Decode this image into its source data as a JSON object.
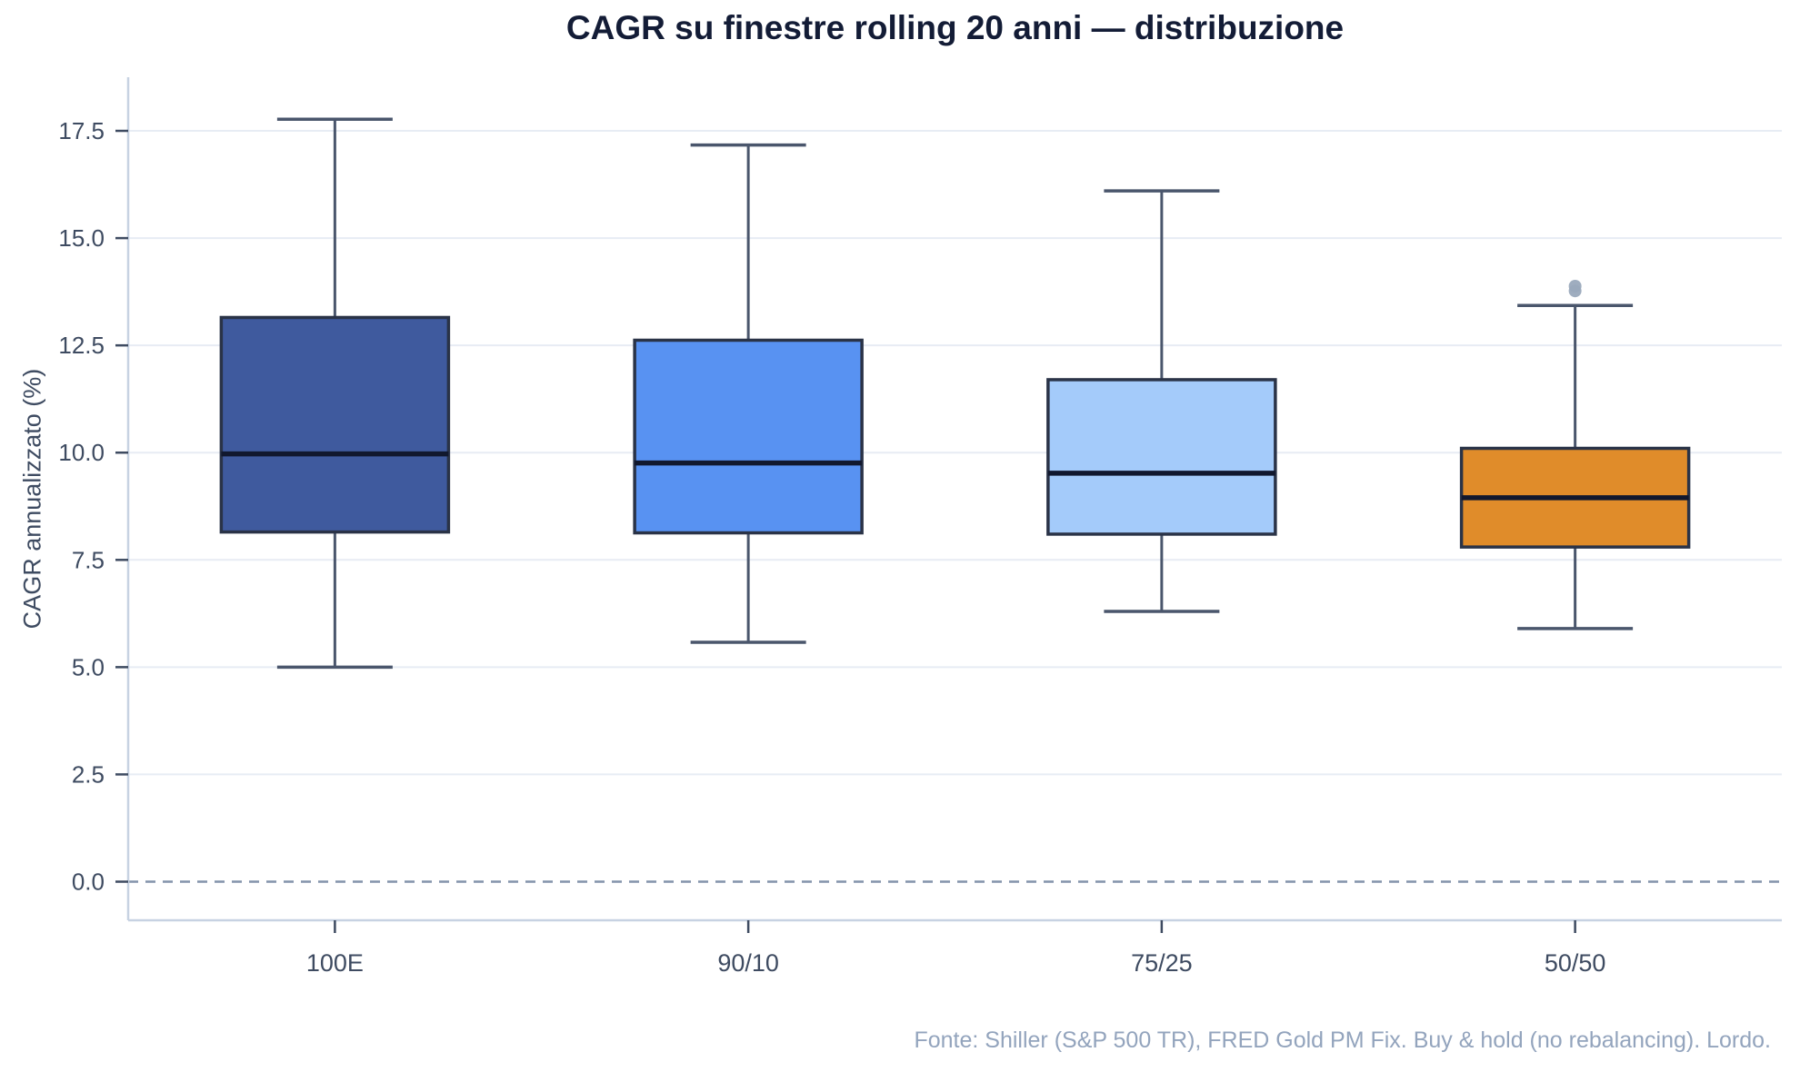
{
  "title": "CAGR su finestre rolling 20 anni — distribuzione",
  "footer": "Fonte: Shiller (S&P 500 TR), FRED Gold PM Fix. Buy & hold (no rebalancing). Lordo.",
  "colors": {
    "background": "#ffffff",
    "title_text": "#131c36",
    "axis_text": "#3e4b61",
    "footer_text": "#93a4bd",
    "grid_line": "#e7ecf4",
    "spine": "#c7d2e2",
    "zero_line": "#8494ab",
    "tick_mark": "#3e4b61",
    "box_edge": "#2a3347",
    "whisker": "#4a566c",
    "median_line": "#11182e",
    "outlier_dot": "#9aa9bc"
  },
  "chart_data": {
    "type": "boxplot",
    "title": "CAGR su finestre rolling 20 anni — distribuzione",
    "xlabel": "",
    "ylabel": "CAGR annualizzato (%)",
    "categories": [
      "100E",
      "90/10",
      "75/25",
      "50/50"
    ],
    "ylim": [
      -0.9,
      18.75
    ],
    "yticks": [
      0.0,
      2.5,
      5.0,
      7.5,
      10.0,
      12.5,
      15.0,
      17.5
    ],
    "ytick_labels": [
      "0.0",
      "2.5",
      "5.0",
      "7.5",
      "10.0",
      "12.5",
      "15.0",
      "17.5"
    ],
    "grid": "horizontal",
    "zero_line": {
      "value": 0.0,
      "style": "dashed"
    },
    "legend": "none",
    "series": [
      {
        "label": "100E",
        "whisker_low": 5.0,
        "q1": 8.15,
        "median": 9.97,
        "q3": 13.15,
        "whisker_high": 17.77,
        "outliers": [],
        "color": "#3f5a9e"
      },
      {
        "label": "90/10",
        "whisker_low": 5.58,
        "q1": 8.13,
        "median": 9.76,
        "q3": 12.62,
        "whisker_high": 17.17,
        "outliers": [],
        "color": "#5892f2"
      },
      {
        "label": "75/25",
        "whisker_low": 6.3,
        "q1": 8.1,
        "median": 9.52,
        "q3": 11.7,
        "whisker_high": 16.1,
        "outliers": [],
        "color": "#a4cbfa"
      },
      {
        "label": "50/50",
        "whisker_low": 5.9,
        "q1": 7.8,
        "median": 8.95,
        "q3": 10.1,
        "whisker_high": 13.43,
        "outliers": [
          13.77,
          13.88
        ],
        "color": "#e08c2a"
      }
    ]
  }
}
